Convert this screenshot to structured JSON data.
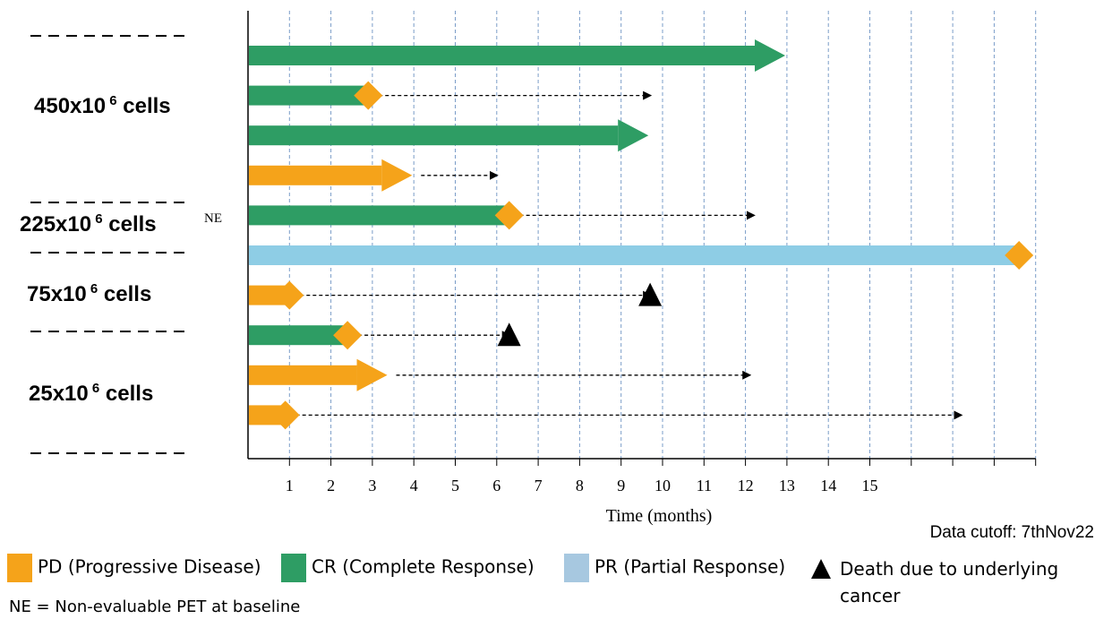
{
  "colors": {
    "PD": "#F5A31A",
    "CR": "#2E9D64",
    "PR": "#8ECDE5",
    "Death": "#000000",
    "grid": "#7A9CC8"
  },
  "chart_data": {
    "type": "swimmer",
    "xlabel": "Time (months)",
    "x_ticks": [
      "1",
      "2",
      "3",
      "4",
      "5",
      "6",
      "7",
      "8",
      "9",
      "10",
      "11",
      "12",
      "13",
      "14",
      "15"
    ],
    "dose_groups": [
      {
        "label": "450x10",
        "sup": "6",
        "suffix": " cells",
        "rows": [
          0,
          1,
          2,
          3
        ]
      },
      {
        "label": "225x10",
        "sup": "6",
        "suffix": " cells",
        "rows": [
          4
        ]
      },
      {
        "label": "75x10",
        "sup": "6",
        "suffix": " cells",
        "rows": [
          5,
          6
        ]
      },
      {
        "label": "25x10",
        "sup": "6",
        "suffix": " cells",
        "rows": [
          7,
          8,
          9
        ]
      }
    ],
    "patients": [
      {
        "response": "CR",
        "bar_end": 12.7,
        "ongoing": true
      },
      {
        "response": "CR",
        "bar_end": 2.9,
        "event": "PD",
        "event_time": 2.9,
        "followup_end": 9.7
      },
      {
        "response": "CR",
        "bar_end": 9.4,
        "ongoing": true
      },
      {
        "response": "PD",
        "bar_end": 3.7,
        "ongoing": true,
        "followup_end": 6.0
      },
      {
        "response": "CR",
        "bar_end": 6.3,
        "event": "PD",
        "event_time": 6.3,
        "followup_end": 12.2,
        "note": "NE"
      },
      {
        "response": "PR",
        "bar_end": 18.6,
        "event": "PD",
        "event_time": 18.6
      },
      {
        "response": "PD",
        "bar_end": 1.0,
        "event": "PD",
        "event_time": 1.0,
        "followup_end": 9.7,
        "death_time": 9.7
      },
      {
        "response": "CR",
        "bar_end": 2.4,
        "event": "PD",
        "event_time": 2.4,
        "followup_end": 6.3,
        "death_time": 6.3
      },
      {
        "response": "PD",
        "bar_end": 3.1,
        "ongoing": true,
        "followup_end": 12.1
      },
      {
        "response": "PD",
        "bar_end": 0.9,
        "event": "PD",
        "event_time": 0.9,
        "followup_end": 17.2
      }
    ],
    "annotation_ne": "NE",
    "data_cutoff": "Data cutoff: 7thNov22",
    "legend": [
      {
        "key": "PD",
        "label": "PD (Progressive Disease)"
      },
      {
        "key": "CR",
        "label": "CR (Complete Response)"
      },
      {
        "key": "PR",
        "label": "PR (Partial Response)"
      },
      {
        "key": "Death",
        "label": "Death due to underlying cancer"
      }
    ],
    "footnote": "NE = Non-evaluable PET at baseline"
  }
}
